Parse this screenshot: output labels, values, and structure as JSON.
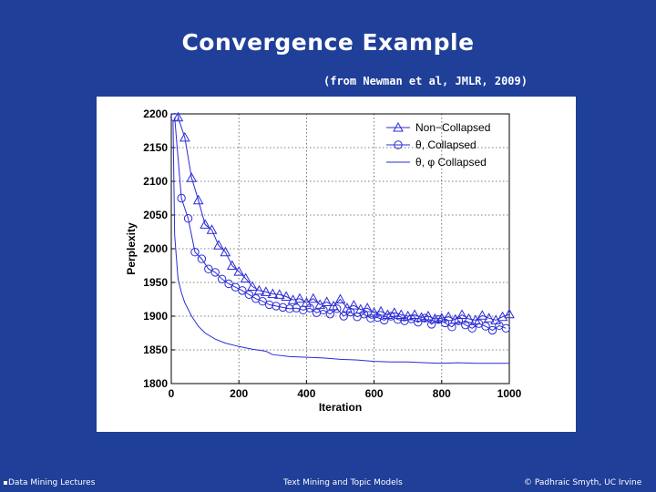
{
  "slide": {
    "title": "Convergence Example",
    "citation": "(from Newman et al, JMLR, 2009)"
  },
  "footer": {
    "left": "Data Mining Lectures",
    "center": "Text Mining and Topic Models",
    "right": "© Padhraic Smyth, UC Irvine"
  },
  "colors": {
    "background": "#1f3f99",
    "series": "#2b2bd6",
    "grid": "#555555"
  },
  "chart_data": {
    "type": "line",
    "title": "",
    "xlabel": "Iteration",
    "ylabel": "Perplexity",
    "xlim": [
      0,
      1000
    ],
    "ylim": [
      1800,
      2200
    ],
    "xticks": [
      0,
      200,
      400,
      600,
      800,
      1000
    ],
    "yticks": [
      1800,
      1850,
      1900,
      1950,
      2000,
      2050,
      2100,
      2150,
      2200
    ],
    "grid": true,
    "legend_position": "top-right",
    "series": [
      {
        "name": "Non−Collapsed",
        "marker": "triangle",
        "x": [
          20,
          40,
          60,
          80,
          100,
          120,
          140,
          160,
          180,
          200,
          220,
          240,
          260,
          280,
          300,
          320,
          340,
          360,
          380,
          400,
          420,
          440,
          460,
          480,
          500,
          520,
          540,
          560,
          580,
          600,
          620,
          640,
          660,
          680,
          700,
          720,
          740,
          760,
          780,
          800,
          820,
          840,
          860,
          880,
          900,
          920,
          940,
          960,
          980,
          1000
        ],
        "y": [
          2195,
          2165,
          2105,
          2072,
          2036,
          2028,
          2005,
          1995,
          1975,
          1966,
          1956,
          1944,
          1938,
          1936,
          1933,
          1932,
          1929,
          1924,
          1926,
          1920,
          1926,
          1917,
          1921,
          1915,
          1925,
          1912,
          1916,
          1910,
          1912,
          1905,
          1907,
          1902,
          1905,
          1902,
          1900,
          1902,
          1898,
          1900,
          1896,
          1897,
          1899,
          1895,
          1902,
          1896,
          1894,
          1901,
          1897,
          1894,
          1899,
          1903
        ]
      },
      {
        "name": "θ, Collapsed",
        "marker": "circle",
        "x": [
          10,
          30,
          50,
          70,
          90,
          110,
          130,
          150,
          170,
          190,
          210,
          230,
          250,
          270,
          290,
          310,
          330,
          350,
          370,
          390,
          410,
          430,
          450,
          470,
          490,
          510,
          530,
          550,
          570,
          590,
          610,
          630,
          650,
          670,
          690,
          710,
          730,
          750,
          770,
          790,
          810,
          830,
          850,
          870,
          890,
          910,
          930,
          950,
          970,
          990
        ],
        "y": [
          2195,
          2075,
          2045,
          1995,
          1985,
          1970,
          1965,
          1955,
          1948,
          1943,
          1938,
          1932,
          1926,
          1922,
          1917,
          1915,
          1913,
          1911,
          1912,
          1909,
          1912,
          1905,
          1909,
          1903,
          1911,
          1900,
          1906,
          1899,
          1903,
          1897,
          1898,
          1894,
          1900,
          1895,
          1893,
          1896,
          1891,
          1897,
          1888,
          1895,
          1890,
          1884,
          1893,
          1887,
          1882,
          1889,
          1885,
          1879,
          1886,
          1882
        ]
      },
      {
        "name": "θ, φ Collapsed",
        "marker": "none",
        "x": [
          5,
          10,
          20,
          30,
          40,
          60,
          80,
          100,
          130,
          160,
          200,
          240,
          280,
          300,
          350,
          400,
          450,
          500,
          550,
          600,
          650,
          700,
          750,
          800,
          850,
          900,
          950,
          1000
        ],
        "y": [
          2190,
          2020,
          1955,
          1935,
          1920,
          1900,
          1885,
          1875,
          1866,
          1860,
          1855,
          1851,
          1848,
          1843,
          1840,
          1839,
          1838,
          1836,
          1835,
          1833,
          1832,
          1832,
          1831,
          1830,
          1831,
          1830,
          1830,
          1830
        ]
      }
    ]
  }
}
